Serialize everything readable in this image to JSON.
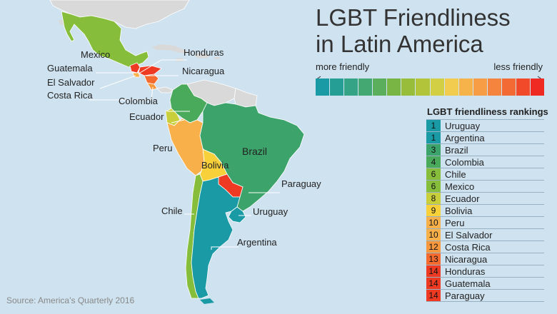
{
  "title_line1": "LGBT Friendliness",
  "title_line2": "in Latin America",
  "scale": {
    "left_label": "more friendly",
    "right_label": "less friendly",
    "colors": [
      "#1a9aa5",
      "#259e95",
      "#35a486",
      "#43a872",
      "#5bae5c",
      "#79b544",
      "#98bd3a",
      "#b2c43a",
      "#d3cf45",
      "#f2cc4f",
      "#f6b34a",
      "#f79d46",
      "#f5843e",
      "#f46a35",
      "#f04a2a",
      "#ee2a22"
    ]
  },
  "rankings_title": "LGBT friendliness rankings",
  "rankings": [
    {
      "rank": "1",
      "country": "Uruguay",
      "color": "#1a9aa5"
    },
    {
      "rank": "1",
      "country": "Argentina",
      "color": "#1a9aa5"
    },
    {
      "rank": "3",
      "country": "Brazil",
      "color": "#3ca36a"
    },
    {
      "rank": "4",
      "country": "Colombia",
      "color": "#4aaa5c"
    },
    {
      "rank": "6",
      "country": "Chile",
      "color": "#86be3b"
    },
    {
      "rank": "6",
      "country": "Mexico",
      "color": "#86be3b"
    },
    {
      "rank": "8",
      "country": "Ecuador",
      "color": "#c8cf3a"
    },
    {
      "rank": "9",
      "country": "Bolivia",
      "color": "#f7d03a"
    },
    {
      "rank": "10",
      "country": "Peru",
      "color": "#f8b14a"
    },
    {
      "rank": "10",
      "country": "El Salvador",
      "color": "#f8b14a"
    },
    {
      "rank": "12",
      "country": "Costa Rica",
      "color": "#f7983e"
    },
    {
      "rank": "13",
      "country": "Nicaragua",
      "color": "#f56a2e"
    },
    {
      "rank": "14",
      "country": "Honduras",
      "color": "#ee3a23"
    },
    {
      "rank": "14",
      "country": "Guatemala",
      "color": "#ee3a23"
    },
    {
      "rank": "14",
      "country": "Paraguay",
      "color": "#ee3a23"
    }
  ],
  "map_labels": {
    "mexico": "Mexico",
    "honduras": "Honduras",
    "guatemala": "Guatemala",
    "nicaragua": "Nicaragua",
    "el_salvador": "El Salvador",
    "costa_rica": "Costa Rica",
    "colombia": "Colombia",
    "ecuador": "Ecuador",
    "peru": "Peru",
    "brazil": "Brazil",
    "bolivia": "Bolivia",
    "paraguay": "Paraguay",
    "chile": "Chile",
    "uruguay": "Uruguay",
    "argentina": "Argentina"
  },
  "source": "Source: America’s Quarterly 2016"
}
